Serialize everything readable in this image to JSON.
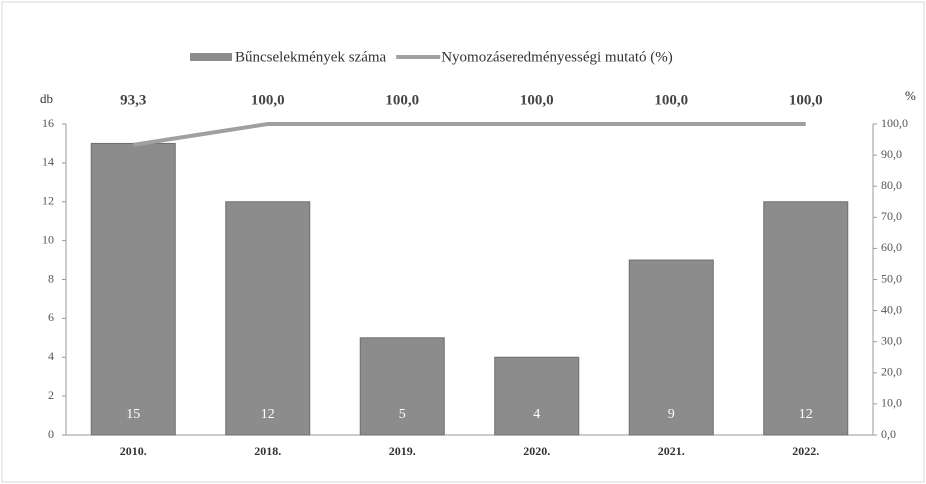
{
  "chart_data": {
    "type": "bar",
    "categories": [
      "2010.",
      "2018.",
      "2019.",
      "2020.",
      "2021.",
      "2022."
    ],
    "series": [
      {
        "name": "Bűncselekmények száma",
        "type": "bar",
        "color": "#8c8c8c",
        "values": [
          15,
          12,
          5,
          4,
          9,
          12
        ]
      },
      {
        "name": "Nyomozáseredményességi mutató (%)",
        "type": "line",
        "axis": "y2",
        "color": "#a0a0a0",
        "values": [
          93.3,
          100,
          100,
          100,
          100,
          100
        ],
        "value_labels": [
          "93,3",
          "100,0",
          "100,0",
          "100,0",
          "100,0",
          "100,0"
        ]
      }
    ],
    "ylabel": "db",
    "y2label": "%",
    "ylim": [
      0,
      16
    ],
    "yticks": [
      0,
      2,
      4,
      6,
      8,
      10,
      12,
      14,
      16
    ],
    "y2lim": [
      0,
      100
    ],
    "y2ticks": [
      {
        "value": 0,
        "label": "0,0"
      },
      {
        "value": 10,
        "label": "10,0"
      },
      {
        "value": 20,
        "label": "20,0"
      },
      {
        "value": 30,
        "label": "30,0"
      },
      {
        "value": 40,
        "label": "40,0"
      },
      {
        "value": 50,
        "label": "50,0"
      },
      {
        "value": 60,
        "label": "60,0"
      },
      {
        "value": 70,
        "label": "70,0"
      },
      {
        "value": 80,
        "label": "80,0"
      },
      {
        "value": 90,
        "label": "90,0"
      },
      {
        "value": 100,
        "label": "100,0"
      }
    ],
    "legend": "top"
  }
}
